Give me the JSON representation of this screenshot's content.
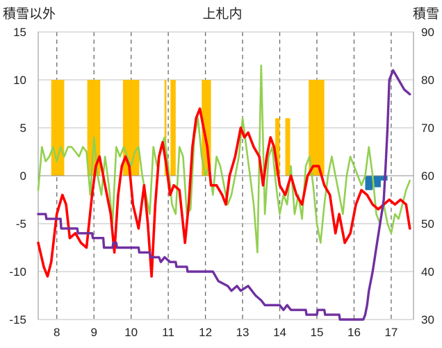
{
  "chart_data": {
    "type": "line",
    "title": "上札内",
    "ylabel_left": "積雪以外",
    "ylabel_right": "積雪",
    "ylim_left": [
      -15,
      15
    ],
    "ylim_right": [
      30,
      90
    ],
    "xlim": [
      7.5,
      17.6
    ],
    "yticks_left": [
      "15",
      "10",
      "5",
      "0",
      "-5",
      "-10",
      "-15"
    ],
    "yticks_right": [
      "90",
      "80",
      "70",
      "60",
      "50",
      "40",
      "30"
    ],
    "xticks": [
      "8",
      "9",
      "10",
      "11",
      "12",
      "13",
      "14",
      "15",
      "16",
      "17"
    ],
    "grid": true,
    "legend": "none",
    "colors": {
      "precip_bar": "#ffc000",
      "snow_bar": "#1f77b4",
      "temperature": "#ff0000",
      "humidity": "#92d050",
      "snow_depth": "#7030a0"
    },
    "bars_positive": [
      {
        "x": [
          7.85,
          8.2
        ],
        "value": 10
      },
      {
        "x": [
          8.82,
          9.17
        ],
        "value": 10
      },
      {
        "x": [
          9.78,
          10.22
        ],
        "value": 10
      },
      {
        "x": [
          10.9,
          10.95
        ],
        "value": 10
      },
      {
        "x": [
          11.06,
          11.2
        ],
        "value": 10
      },
      {
        "x": [
          11.9,
          12.15
        ],
        "value": 10
      },
      {
        "x": [
          13.88,
          14.0
        ],
        "value": 6
      },
      {
        "x": [
          14.15,
          14.28
        ],
        "value": 6
      },
      {
        "x": [
          14.78,
          15.2
        ],
        "value": 10
      }
    ],
    "bars_negative": [
      {
        "x": [
          16.3,
          16.5
        ],
        "value": -1.5
      },
      {
        "x": [
          16.5,
          16.72
        ],
        "value": -1.2
      },
      {
        "x": [
          16.72,
          16.9
        ],
        "value": -0.5
      }
    ],
    "series": [
      {
        "name": "",
        "axis": "left",
        "x": [
          7.5,
          7.65,
          7.75,
          7.85,
          8.0,
          8.15,
          8.25,
          8.35,
          8.5,
          8.65,
          8.8,
          8.95,
          9.05,
          9.15,
          9.3,
          9.45,
          9.55,
          9.65,
          9.75,
          9.85,
          9.95,
          10.05,
          10.2,
          10.35,
          10.45,
          10.55,
          10.65,
          10.75,
          10.85,
          10.95,
          11.05,
          11.15,
          11.3,
          11.45,
          11.55,
          11.65,
          11.75,
          11.85,
          11.95,
          12.05,
          12.15,
          12.3,
          12.45,
          12.55,
          12.65,
          12.8,
          12.95,
          13.05,
          13.15,
          13.3,
          13.45,
          13.55,
          13.65,
          13.75,
          13.85,
          14.0,
          14.15,
          14.3,
          14.45,
          14.6,
          14.75,
          14.9,
          15.05,
          15.2,
          15.35,
          15.5,
          15.6,
          15.75,
          15.9,
          16.05,
          16.2,
          16.35,
          16.5,
          16.65,
          16.8,
          16.95,
          17.1,
          17.25,
          17.4,
          17.5
        ],
        "values": [
          -7,
          -9.5,
          -10.5,
          -9,
          -4,
          -2,
          -3,
          -6.5,
          -6,
          -7,
          -7.5,
          -2,
          1,
          2,
          -1,
          -4,
          -8,
          -2,
          1,
          2,
          1,
          -3,
          -5.5,
          -1,
          -5,
          -10.5,
          -3,
          2,
          3.5,
          1,
          -2,
          -1,
          -1.5,
          -7,
          -3,
          3,
          6,
          7,
          5,
          3,
          -1,
          -1,
          -2,
          -3,
          0,
          2,
          5,
          4,
          4.5,
          3,
          2,
          -1,
          2,
          4,
          3,
          -1,
          -2,
          0,
          -2,
          -3,
          0,
          1,
          1,
          -1,
          -2,
          -6,
          -4,
          -7,
          -6,
          -3,
          -1.5,
          -2,
          -3,
          -3.5,
          -3,
          -2.5,
          -3,
          -2.5,
          -3,
          -5.5
        ]
      },
      {
        "name": "",
        "axis": "left",
        "x": [
          7.5,
          7.6,
          7.7,
          7.8,
          7.9,
          8.0,
          8.1,
          8.2,
          8.3,
          8.4,
          8.5,
          8.6,
          8.7,
          8.8,
          8.9,
          9.0,
          9.1,
          9.2,
          9.3,
          9.4,
          9.5,
          9.6,
          9.7,
          9.8,
          9.9,
          10.0,
          10.1,
          10.2,
          10.3,
          10.4,
          10.5,
          10.6,
          10.7,
          10.8,
          10.9,
          11.0,
          11.1,
          11.2,
          11.3,
          11.4,
          11.5,
          11.6,
          11.7,
          11.8,
          11.9,
          12.0,
          12.1,
          12.2,
          12.3,
          12.4,
          12.5,
          12.6,
          12.7,
          12.8,
          12.9,
          13.0,
          13.1,
          13.2,
          13.3,
          13.4,
          13.5,
          13.6,
          13.7,
          13.8,
          13.9,
          14.0,
          14.1,
          14.2,
          14.3,
          14.4,
          14.5,
          14.6,
          14.7,
          14.8,
          14.9,
          15.0,
          15.1,
          15.2,
          15.3,
          15.4,
          15.5,
          15.6,
          15.7,
          15.8,
          15.9,
          16.0,
          16.1,
          16.2,
          16.3,
          16.4,
          16.5,
          16.6,
          16.7,
          16.8,
          16.9,
          17.0,
          17.1,
          17.2,
          17.3,
          17.4,
          17.5
        ],
        "values": [
          -1.5,
          3,
          1.5,
          2,
          3,
          1.5,
          3,
          2,
          3,
          3,
          2.5,
          2,
          3,
          2.5,
          -2,
          4,
          0,
          -2,
          2,
          -1,
          -5,
          3,
          2,
          3,
          2,
          1,
          2.5,
          3,
          0,
          -2,
          -4,
          3,
          1,
          3,
          4,
          1,
          -3,
          -4,
          3,
          2,
          -4,
          -3.5,
          4,
          6,
          2,
          0,
          1,
          -2,
          2,
          1,
          -1,
          -3,
          -2,
          0,
          2,
          6,
          3,
          0,
          -3,
          -8,
          11.5,
          -4,
          2,
          3,
          -1,
          -4,
          -2,
          -3,
          1,
          -4,
          -2,
          -4.5,
          1,
          2,
          -1,
          -5,
          -7,
          -3,
          0,
          2,
          0,
          -2,
          -4,
          0,
          2,
          1,
          0,
          -1,
          0,
          3,
          0,
          -4,
          -5,
          -3,
          -5,
          -6,
          -4,
          -4.5,
          -3,
          -1.5,
          -0.5
        ]
      },
      {
        "name": "",
        "axis": "right",
        "x": [
          7.5,
          7.7,
          7.72,
          8.1,
          8.12,
          8.55,
          8.57,
          8.95,
          8.97,
          9.25,
          9.27,
          9.5,
          9.52,
          9.6,
          9.62,
          10.2,
          10.22,
          10.5,
          10.52,
          10.75,
          10.8,
          10.9,
          11.05,
          11.2,
          11.22,
          11.5,
          11.52,
          12.2,
          12.35,
          12.6,
          12.7,
          12.85,
          12.95,
          13.15,
          13.35,
          13.5,
          13.6,
          14.0,
          14.1,
          14.2,
          14.3,
          14.7,
          14.72,
          15.0,
          15.02,
          15.2,
          15.22,
          15.6,
          15.62,
          16.25,
          16.3,
          16.35,
          16.4,
          16.5,
          16.6,
          16.7,
          16.8,
          16.85,
          16.9,
          16.95,
          17.05,
          17.2,
          17.35,
          17.5
        ],
        "values": [
          52,
          52,
          51,
          51,
          49,
          49,
          48,
          48,
          47,
          47,
          45,
          45,
          46,
          46,
          45,
          45,
          44,
          44,
          43,
          43,
          42,
          43,
          42,
          42,
          41,
          41,
          40,
          40,
          38,
          37,
          36,
          37,
          36,
          37,
          35,
          34,
          33,
          33,
          32,
          33,
          32,
          32,
          31,
          31,
          32,
          32,
          31,
          31,
          30,
          30,
          31,
          33,
          36,
          40,
          45,
          50,
          55,
          62,
          70,
          80,
          82,
          80,
          78,
          77
        ]
      }
    ]
  }
}
